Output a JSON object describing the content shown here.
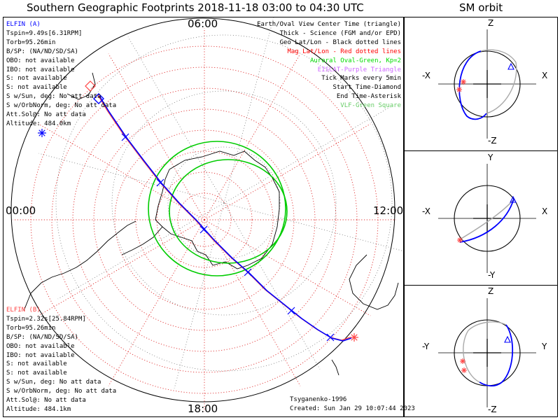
{
  "header": {
    "main_title": "Southern Geographic Footprints 2018-11-18 03:00 to 04:30 UTC",
    "orbit_title": "SM orbit"
  },
  "map": {
    "clock_labels": {
      "top": "06:00",
      "left": "00:00",
      "right": "12:00",
      "bottom": "18:00"
    },
    "legend": [
      {
        "text": "Earth/Oval View Center Time (triangle)",
        "color": "#000000"
      },
      {
        "text": "Thick - Science (FGM and/or EPD)",
        "color": "#000000"
      },
      {
        "text": "Geo Lat/Lon - Black dotted lines",
        "color": "#000000"
      },
      {
        "text": "Mag Lat/Lon - Red dotted lines",
        "color": "#ff0000"
      },
      {
        "text": "Auroral Oval-Green, Kp=2",
        "color": "#00dd00"
      },
      {
        "text": "EISCAT-Purple Triangle",
        "color": "#cc66ff"
      },
      {
        "text": "Tick Marks every 5min",
        "color": "#000000"
      },
      {
        "text": "Start Time-Diamond",
        "color": "#000000"
      },
      {
        "text": "End Time-Asterisk",
        "color": "#000000"
      },
      {
        "text": "VLF-Green Square",
        "color": "#66cc66"
      }
    ],
    "elfin_a": {
      "name": "ELFIN (A)",
      "color": "#0000ff",
      "lines": [
        "Tspin=9.49s[6.31RPM]",
        "Torb=95.26min",
        "B/SP: (NA/ND/SD/SA)",
        "OBO: not available",
        "IBO: not available",
        "S: not available",
        "S: not available",
        "S w/Sun, deg: No att data",
        "S w/OrbNorm, deg: No att data",
        "Att.Sol@: No att data",
        "Altitude: 484.0km"
      ]
    },
    "elfin_b": {
      "name": "ELFIN (B)",
      "color": "#ff4444",
      "lines": [
        "Tspin=2.32s[25.84RPM]",
        "Torb=95.26min",
        "B/SP: (NA/ND/SD/SA)",
        "OBO: not available",
        "IBO: not available",
        "S: not available",
        "S: not available",
        "S w/Sun, deg: No att data",
        "S w/OrbNorm, deg: No att data",
        "Att.Sol@: No att data",
        "Altitude: 484.1km"
      ]
    },
    "credit": {
      "model": "Tsyganenko-1996",
      "created": "Created: Sun Jan 29 10:07:44 2023"
    }
  },
  "orbit_panels": [
    {
      "top": "Z",
      "bottom": "-Z",
      "left": "-X",
      "right": "X"
    },
    {
      "top": "Y",
      "bottom": "-Y",
      "left": "-X",
      "right": "X"
    },
    {
      "top": "Z",
      "bottom": "-Z",
      "left": "-Y",
      "right": "Y"
    }
  ],
  "colors": {
    "orbit_a": "#0000ff",
    "orbit_b": "#ff4444",
    "oval": "#00cc00",
    "mag_grid": "#e03030",
    "geo_grid": "#444444",
    "shadow": "#aaaaaa"
  }
}
